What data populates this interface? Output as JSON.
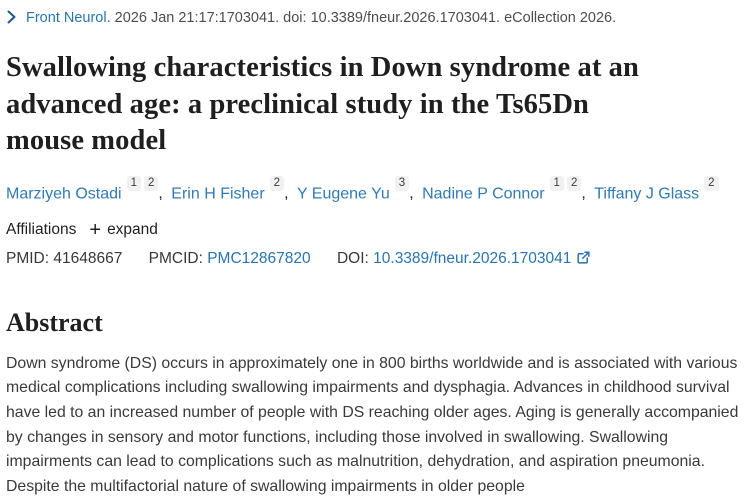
{
  "citation": {
    "journal_label": "Front Neurol.",
    "details": "2026 Jan 21:17:1703041. doi: 10.3389/fneur.2026.1703041. eCollection 2026."
  },
  "title": "Swallowing characteristics in Down syndrome at an\nadvanced age: a preclinical study in the Ts65Dn\nmouse model",
  "authors": [
    {
      "name": "Marziyeh Ostadi",
      "affiliation_numbers": [
        "1",
        "2"
      ]
    },
    {
      "name": "Erin H Fisher",
      "affiliation_numbers": [
        "2"
      ]
    },
    {
      "name": "Y Eugene Yu",
      "affiliation_numbers": [
        "3"
      ]
    },
    {
      "name": "Nadine P Connor",
      "affiliation_numbers": [
        "1",
        "2"
      ]
    },
    {
      "name": "Tiffany J Glass",
      "affiliation_numbers": [
        "2"
      ]
    }
  ],
  "affiliations": {
    "label": "Affiliations",
    "plus": "+",
    "expand_label": "expand"
  },
  "identifiers": {
    "pmid_label": "PMID:",
    "pmid": "41648667",
    "pmcid_label": "PMCID:",
    "pmcid": "PMC12867820",
    "doi_label": "DOI:",
    "doi": "10.3389/fneur.2026.1703041"
  },
  "abstract": {
    "heading": "Abstract",
    "text": "Down syndrome (DS) occurs in approximately one in 800 births worldwide and is associated with various medical complications including swallowing impairments and dysphagia. Advances in childhood survival have led to an increased number of people with DS reaching older ages. Aging is generally accompanied by changes in sensory and motor functions, including those involved in swallowing. Swallowing impairments can lead to complications such as malnutrition, dehydration, and aspiration pneumonia. Despite the multifactorial nature of swallowing impairments in older people"
  },
  "colors": {
    "link_blue": "#2575b8",
    "chevron_navy": "#20558a",
    "title_dark": "#1f1f1f",
    "body_gray": "#3a3a3a",
    "badge_bg": "#f1f1f1"
  }
}
